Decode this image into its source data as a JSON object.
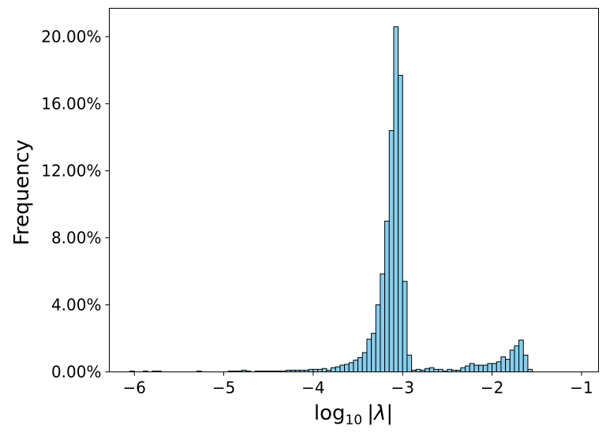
{
  "chart_data": {
    "type": "bar",
    "subtype": "histogram",
    "title": "",
    "xlabel": "log",
    "xlabel_sub": "10",
    "xlabel_var": "|λ|",
    "ylabel": "Frequency",
    "xlim": [
      -6.28,
      -0.81
    ],
    "ylim": [
      0,
      21.7
    ],
    "x_ticks": [
      -6,
      -5,
      -4,
      -3,
      -2,
      -1
    ],
    "x_tick_labels": [
      "−6",
      "−5",
      "−4",
      "−3",
      "−2",
      "−1"
    ],
    "y_ticks": [
      0,
      4,
      8,
      12,
      16,
      20
    ],
    "y_tick_labels": [
      "0.00%",
      "4.00%",
      "8.00%",
      "12.00%",
      "16.00%",
      "20.00%"
    ],
    "bar_color": "#87ceeb",
    "edge_color": "#000000",
    "bin_start": -6.05,
    "bin_width": 0.05,
    "values": [
      0.05,
      0.0,
      0.0,
      0.05,
      0.0,
      0.05,
      0.05,
      0.0,
      0.0,
      0.0,
      0.0,
      0.0,
      0.0,
      0.0,
      0.0,
      0.05,
      0.0,
      0.0,
      0.0,
      0.0,
      0.0,
      0.0,
      0.05,
      0.05,
      0.05,
      0.1,
      0.05,
      0.0,
      0.05,
      0.05,
      0.05,
      0.05,
      0.05,
      0.05,
      0.05,
      0.1,
      0.1,
      0.1,
      0.1,
      0.1,
      0.15,
      0.15,
      0.15,
      0.2,
      0.1,
      0.25,
      0.3,
      0.4,
      0.45,
      0.55,
      0.7,
      0.85,
      1.15,
      1.95,
      2.3,
      4.0,
      5.85,
      9.0,
      14.4,
      20.6,
      17.7,
      5.4,
      1.0,
      0.1,
      0.15,
      0.1,
      0.2,
      0.25,
      0.15,
      0.15,
      0.05,
      0.15,
      0.1,
      0.1,
      0.25,
      0.35,
      0.5,
      0.4,
      0.4,
      0.4,
      0.5,
      0.5,
      0.6,
      0.9,
      0.75,
      1.3,
      1.55,
      1.9,
      1.0,
      0.15
    ]
  }
}
